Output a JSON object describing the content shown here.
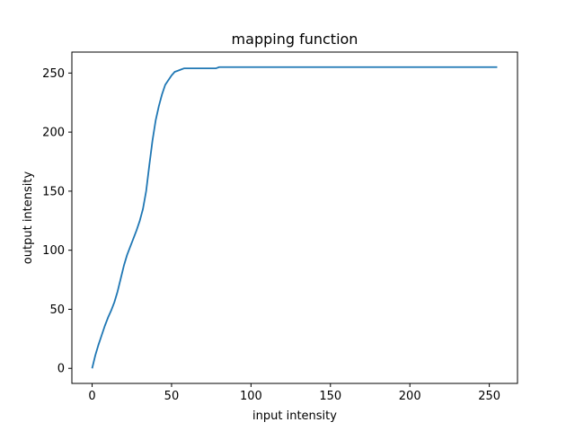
{
  "chart_data": {
    "type": "line",
    "title": "mapping function",
    "xlabel": "input intensity",
    "ylabel": "output intensity",
    "xlim": [
      -12.75,
      267.75
    ],
    "ylim": [
      -12.75,
      267.75
    ],
    "xticks": [
      0,
      50,
      100,
      150,
      200,
      250
    ],
    "yticks": [
      0,
      50,
      100,
      150,
      200,
      250
    ],
    "grid": false,
    "legend": "none",
    "series": [
      {
        "color": "#1f77b4",
        "x": [
          0,
          2,
          4,
          6,
          8,
          10,
          12,
          14,
          16,
          18,
          20,
          22,
          24,
          26,
          28,
          30,
          32,
          34,
          36,
          38,
          40,
          42,
          44,
          46,
          48,
          50,
          52,
          54,
          56,
          58,
          60,
          62,
          64,
          66,
          68,
          70,
          72,
          74,
          76,
          78,
          80,
          82,
          100,
          150,
          200,
          255
        ],
        "y": [
          0,
          11,
          20,
          28,
          36,
          43,
          49,
          56,
          65,
          76,
          87,
          96,
          103,
          110,
          117,
          125,
          135,
          150,
          172,
          193,
          210,
          222,
          232,
          240,
          244,
          248,
          251,
          252,
          253,
          254,
          254,
          254,
          254,
          254,
          254,
          254,
          254,
          254,
          254,
          254,
          255,
          255,
          255,
          255,
          255,
          255
        ]
      }
    ]
  }
}
